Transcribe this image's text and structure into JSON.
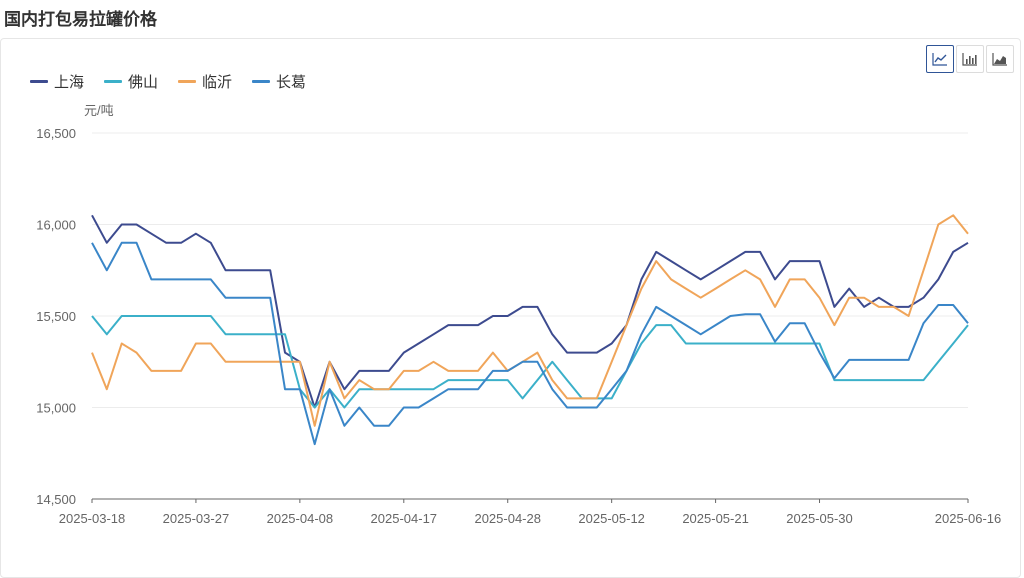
{
  "page": {
    "title": "国内打包易拉罐价格"
  },
  "toolbar": {
    "buttons": [
      {
        "name": "line-chart-icon",
        "active": true
      },
      {
        "name": "bar-chart-icon",
        "active": false
      },
      {
        "name": "area-chart-icon",
        "active": false
      }
    ]
  },
  "chart_data": {
    "type": "line",
    "ylabel": "元/吨",
    "ylim": [
      14500,
      16500
    ],
    "yticks": [
      14500,
      15000,
      15500,
      16000,
      16500
    ],
    "ytick_labels": [
      "14,500",
      "15,000",
      "15,500",
      "16,000",
      "16,500"
    ],
    "xtick_labels": [
      "2025-03-18",
      "2025-03-27",
      "2025-04-08",
      "2025-04-17",
      "2025-04-28",
      "2025-05-12",
      "2025-05-21",
      "2025-05-30",
      "2025-06-16"
    ],
    "xtick_indices": [
      0,
      7,
      14,
      21,
      28,
      35,
      42,
      49,
      59
    ],
    "grid": true,
    "legend_position": "top-left",
    "series": [
      {
        "name": "上海",
        "color": "#3d4b8f",
        "values": [
          16050,
          15900,
          16000,
          16000,
          15950,
          15900,
          15900,
          15950,
          15900,
          15750,
          15750,
          15750,
          15750,
          15300,
          15250,
          15000,
          15250,
          15100,
          15200,
          15200,
          15200,
          15300,
          15350,
          15400,
          15450,
          15450,
          15450,
          15500,
          15500,
          15550,
          15550,
          15400,
          15300,
          15300,
          15300,
          15350,
          15450,
          15700,
          15850,
          15800,
          15750,
          15700,
          15750,
          15800,
          15850,
          15850,
          15700,
          15800,
          15800,
          15800,
          15550,
          15650,
          15550,
          15600,
          15550,
          15550,
          15600,
          15700,
          15850,
          15900
        ]
      },
      {
        "name": "佛山",
        "color": "#3bb0c9",
        "values": [
          15500,
          15400,
          15500,
          15500,
          15500,
          15500,
          15500,
          15500,
          15500,
          15400,
          15400,
          15400,
          15400,
          15400,
          15100,
          15000,
          15100,
          15000,
          15100,
          15100,
          15100,
          15100,
          15100,
          15100,
          15150,
          15150,
          15150,
          15150,
          15150,
          15050,
          15150,
          15250,
          15150,
          15050,
          15050,
          15050,
          15200,
          15350,
          15450,
          15450,
          15350,
          15350,
          15350,
          15350,
          15350,
          15350,
          15350,
          15350,
          15350,
          15350,
          15150,
          15150,
          15150,
          15150,
          15150,
          15150,
          15150,
          15250,
          15350,
          15450
        ]
      },
      {
        "name": "临沂",
        "color": "#f0a55a",
        "values": [
          15300,
          15100,
          15350,
          15300,
          15200,
          15200,
          15200,
          15350,
          15350,
          15250,
          15250,
          15250,
          15250,
          15250,
          15250,
          14900,
          15250,
          15050,
          15150,
          15100,
          15100,
          15200,
          15200,
          15250,
          15200,
          15200,
          15200,
          15300,
          15200,
          15250,
          15300,
          15150,
          15050,
          15050,
          15050,
          15250,
          15450,
          15650,
          15800,
          15700,
          15650,
          15600,
          15650,
          15700,
          15750,
          15700,
          15550,
          15700,
          15700,
          15600,
          15450,
          15600,
          15600,
          15550,
          15550,
          15500,
          15750,
          16000,
          16050,
          15950
        ]
      },
      {
        "name": "长葛",
        "color": "#3a86c8",
        "values": [
          15900,
          15750,
          15900,
          15900,
          15700,
          15700,
          15700,
          15700,
          15700,
          15600,
          15600,
          15600,
          15600,
          15100,
          15100,
          14800,
          15100,
          14900,
          15000,
          14900,
          14900,
          15000,
          15000,
          15050,
          15100,
          15100,
          15100,
          15200,
          15200,
          15250,
          15250,
          15100,
          15000,
          15000,
          15000,
          15100,
          15200,
          15400,
          15550,
          15500,
          15450,
          15400,
          15450,
          15500,
          15510,
          15510,
          15360,
          15460,
          15460,
          15300,
          15160,
          15260,
          15260,
          15260,
          15260,
          15260,
          15460,
          15560,
          15560,
          15460
        ]
      }
    ]
  }
}
